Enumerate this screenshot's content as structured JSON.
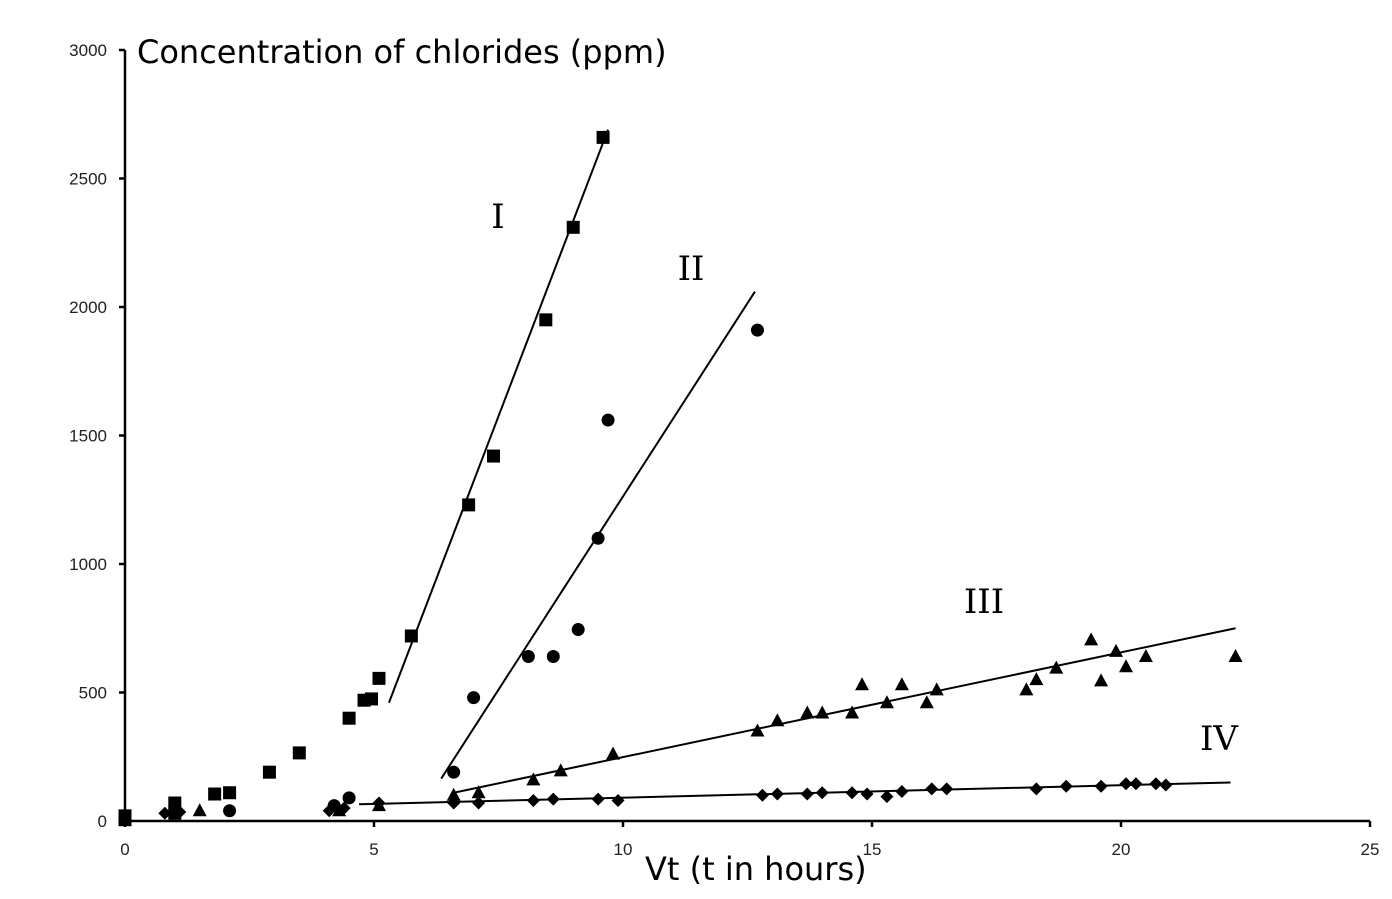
{
  "chart_data": {
    "type": "scatter",
    "title": "",
    "xlabel": "Vt (t in hours)",
    "ylabel": "Concentration of chlorides (ppm)",
    "xlim": [
      0,
      25
    ],
    "ylim": [
      0,
      3000
    ],
    "x_ticks": [
      "0",
      "5",
      "10",
      "15",
      "20",
      "25"
    ],
    "y_ticks": [
      "0",
      "500",
      "1000",
      "1500",
      "2000",
      "2500",
      "3000"
    ],
    "grid": false,
    "legend": "none",
    "series": [
      {
        "label": "I",
        "marker": "square",
        "points": [
          [
            0,
            20
          ],
          [
            0,
            5
          ],
          [
            1,
            30
          ],
          [
            1,
            70
          ],
          [
            1.8,
            105
          ],
          [
            2.1,
            110
          ],
          [
            2.9,
            190
          ],
          [
            3.5,
            265
          ],
          [
            4.5,
            400
          ],
          [
            4.8,
            470
          ],
          [
            4.95,
            475
          ],
          [
            5.1,
            555
          ],
          [
            5.75,
            720
          ],
          [
            6.9,
            1230
          ],
          [
            7.4,
            1420
          ],
          [
            8.45,
            1950
          ],
          [
            9.0,
            2310
          ],
          [
            9.6,
            2660
          ]
        ],
        "fit": [
          [
            5.3,
            460
          ],
          [
            9.7,
            2690
          ]
        ]
      },
      {
        "label": "II",
        "marker": "circle",
        "points": [
          [
            0,
            20
          ],
          [
            2.1,
            40
          ],
          [
            4.2,
            60
          ],
          [
            4.5,
            90
          ],
          [
            6.6,
            190
          ],
          [
            7.0,
            480
          ],
          [
            8.1,
            640
          ],
          [
            8.6,
            640
          ],
          [
            9.1,
            745
          ],
          [
            9.5,
            1100
          ],
          [
            9.7,
            1560
          ],
          [
            12.7,
            1910
          ]
        ],
        "fit": [
          [
            6.35,
            165
          ],
          [
            12.65,
            2060
          ]
        ]
      },
      {
        "label": "III",
        "marker": "triangle",
        "points": [
          [
            1.5,
            40
          ],
          [
            4.3,
            40
          ],
          [
            5.1,
            60
          ],
          [
            6.6,
            100
          ],
          [
            7.1,
            110
          ],
          [
            8.2,
            160
          ],
          [
            8.75,
            195
          ],
          [
            9.8,
            260
          ],
          [
            12.7,
            350
          ],
          [
            13.1,
            390
          ],
          [
            13.7,
            420
          ],
          [
            14.0,
            420
          ],
          [
            14.6,
            420
          ],
          [
            14.8,
            530
          ],
          [
            15.3,
            460
          ],
          [
            15.6,
            530
          ],
          [
            16.1,
            460
          ],
          [
            16.3,
            510
          ],
          [
            18.1,
            510
          ],
          [
            18.3,
            550
          ],
          [
            18.7,
            595
          ],
          [
            19.4,
            705
          ],
          [
            19.6,
            545
          ],
          [
            19.9,
            660
          ],
          [
            20.1,
            600
          ],
          [
            20.5,
            640
          ],
          [
            22.3,
            640
          ]
        ],
        "fit": [
          [
            6.6,
            110
          ],
          [
            22.3,
            750
          ]
        ]
      },
      {
        "label": "IV",
        "marker": "diamond",
        "points": [
          [
            0.8,
            30
          ],
          [
            1.1,
            35
          ],
          [
            4.1,
            40
          ],
          [
            4.4,
            50
          ],
          [
            5.1,
            70
          ],
          [
            6.6,
            70
          ],
          [
            7.1,
            70
          ],
          [
            8.2,
            80
          ],
          [
            8.6,
            85
          ],
          [
            9.5,
            85
          ],
          [
            9.9,
            80
          ],
          [
            12.8,
            100
          ],
          [
            13.1,
            105
          ],
          [
            13.7,
            105
          ],
          [
            14.0,
            110
          ],
          [
            14.6,
            110
          ],
          [
            14.9,
            105
          ],
          [
            15.3,
            95
          ],
          [
            15.6,
            115
          ],
          [
            16.2,
            125
          ],
          [
            16.5,
            125
          ],
          [
            18.3,
            125
          ],
          [
            18.9,
            135
          ],
          [
            19.6,
            135
          ],
          [
            20.1,
            145
          ],
          [
            20.3,
            145
          ],
          [
            20.7,
            145
          ],
          [
            20.9,
            140
          ]
        ],
        "fit": [
          [
            4.7,
            65
          ],
          [
            22.2,
            150
          ]
        ]
      }
    ]
  }
}
